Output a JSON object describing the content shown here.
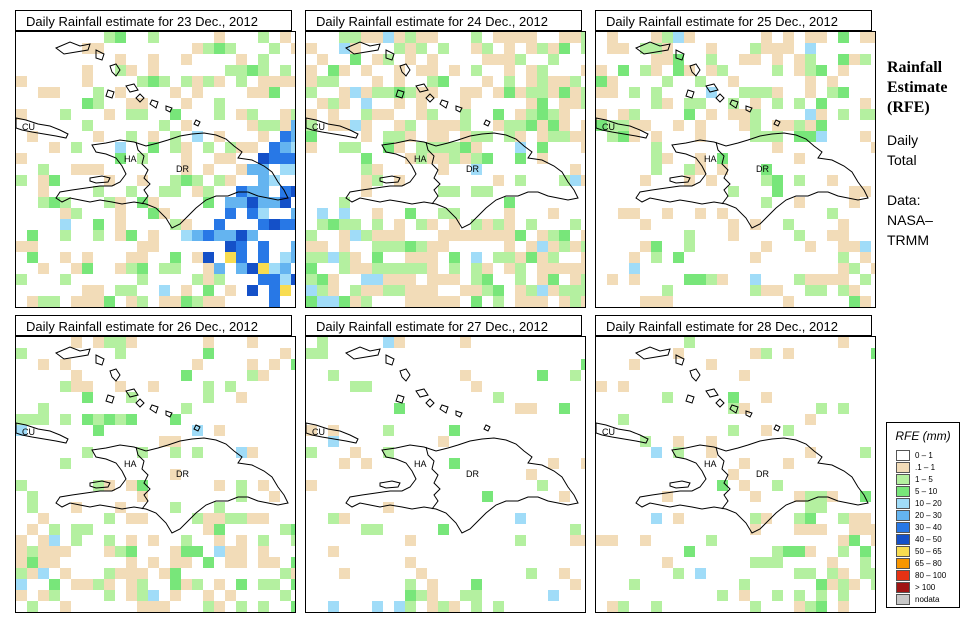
{
  "panels": [
    {
      "title": "Daily Rainfall estimate for  23 Dec., 2012",
      "seed": 23,
      "profile": "heavy-se"
    },
    {
      "title": "Daily Rainfall estimate for  24 Dec., 2012",
      "seed": 24,
      "profile": "wide"
    },
    {
      "title": "Daily Rainfall estimate for  25 Dec., 2012",
      "seed": 25,
      "profile": "north"
    },
    {
      "title": "Daily Rainfall estimate for  26 Dec., 2012",
      "seed": 26,
      "profile": "light-south"
    },
    {
      "title": "Daily Rainfall estimate for  27 Dec., 2012",
      "seed": 27,
      "profile": "sparse"
    },
    {
      "title": "Daily Rainfall estimate for  28 Dec., 2012",
      "seed": 28,
      "profile": "light-se"
    }
  ],
  "map_labels": {
    "cuba": "CU",
    "haiti": "HA",
    "dominican_republic": "DR"
  },
  "side": {
    "title_lines": [
      "Rainfall",
      "Estimate",
      "(RFE)"
    ],
    "daily": [
      "Daily",
      "Total"
    ],
    "data": [
      "Data:",
      "NASA–",
      "TRMM"
    ]
  },
  "legend": {
    "title": "RFE (mm)",
    "items": [
      {
        "label": "0 – 1",
        "color": "#ffffff"
      },
      {
        "label": ".1 – 1",
        "color": "#f2dcb8"
      },
      {
        "label": "1 – 5",
        "color": "#b4f0a0"
      },
      {
        "label": "5 – 10",
        "color": "#78e67a"
      },
      {
        "label": "10 – 20",
        "color": "#a0dcf8"
      },
      {
        "label": "20 – 30",
        "color": "#64b4f0"
      },
      {
        "label": "30 – 40",
        "color": "#2878e6"
      },
      {
        "label": "40 – 50",
        "color": "#1450c8"
      },
      {
        "label": "50 – 65",
        "color": "#f8dc50"
      },
      {
        "label": "65 – 80",
        "color": "#f89600"
      },
      {
        "label": "80 – 100",
        "color": "#e63214"
      },
      {
        "label": "> 100",
        "color": "#a01414"
      },
      {
        "label": "nodata",
        "color": "#c8c8c8"
      }
    ]
  }
}
